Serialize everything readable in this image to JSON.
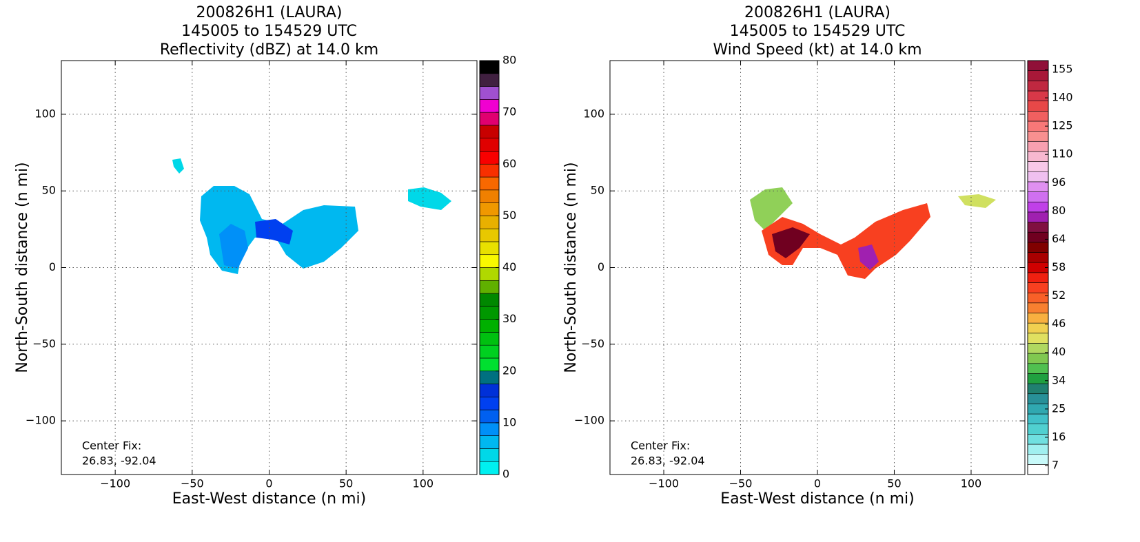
{
  "chart_data": [
    {
      "type": "heatmap",
      "title": [
        "200826H1 (LAURA)",
        "145005 to 154529 UTC",
        "Reflectivity (dBZ) at 14.0 km"
      ],
      "xlabel": "East-West distance (n mi)",
      "ylabel": "North-South distance (n mi)",
      "xlim": [
        -135,
        135
      ],
      "ylim": [
        -135,
        135
      ],
      "xticks": [
        {
          "value": -100,
          "label": "−100"
        },
        {
          "value": -50,
          "label": "−50"
        },
        0,
        50,
        100
      ],
      "yticks": [
        {
          "value": -100,
          "label": "−100"
        },
        {
          "value": -50,
          "label": "−50"
        },
        0,
        50,
        100
      ],
      "grid": true,
      "annotation": [
        "Center Fix:",
        "26.83, -92.04"
      ],
      "colorbar": {
        "lim": [
          0,
          80
        ],
        "ticks": [
          0,
          10,
          20,
          30,
          40,
          50,
          60,
          70,
          80
        ],
        "colors": [
          "#00f0f0",
          "#00d8e8",
          "#00b8f0",
          "#0090f8",
          "#0060f0",
          "#0040f0",
          "#0030d8",
          "#007080",
          "#00e030",
          "#00d020",
          "#00c010",
          "#00b000",
          "#009800",
          "#008800",
          "#60b000",
          "#b0d800",
          "#f8f800",
          "#e8e000",
          "#e8c800",
          "#e8b000",
          "#f09800",
          "#f08000",
          "#f86800",
          "#f83000",
          "#f80000",
          "#e00000",
          "#c80000",
          "#e00070",
          "#f000d0",
          "#a050d0",
          "#402040",
          "#000000"
        ]
      }
    },
    {
      "type": "heatmap",
      "title": [
        "200826H1 (LAURA)",
        "145005 to 154529 UTC",
        "Wind Speed (kt) at 14.0 km"
      ],
      "xlabel": "East-West distance (n mi)",
      "ylabel": "North-South distance (n mi)",
      "xlim": [
        -135,
        135
      ],
      "ylim": [
        -135,
        135
      ],
      "xticks": [
        {
          "value": -100,
          "label": "−100"
        },
        {
          "value": -50,
          "label": "−50"
        },
        0,
        50,
        100
      ],
      "yticks": [
        {
          "value": -100,
          "label": "−100"
        },
        {
          "value": -50,
          "label": "−50"
        },
        0,
        50,
        100
      ],
      "grid": true,
      "annotation": [
        "Center Fix:",
        "26.83, -92.04"
      ],
      "colorbar": {
        "ticks": [
          7,
          16,
          25,
          34,
          40,
          46,
          52,
          58,
          64,
          80,
          96,
          110,
          125,
          140,
          155
        ],
        "colors": [
          "#ffffff",
          "#c8fafa",
          "#a0f0f0",
          "#70e0e0",
          "#50d0d0",
          "#40c0c8",
          "#30a8b0",
          "#289098",
          "#208070",
          "#20a040",
          "#50c050",
          "#80c850",
          "#b0d860",
          "#e0e060",
          "#f0d050",
          "#f8b040",
          "#f88030",
          "#f86028",
          "#f84020",
          "#f02010",
          "#d00000",
          "#a80000",
          "#800000",
          "#700020",
          "#801040",
          "#a020b0",
          "#c040e8",
          "#d070f0",
          "#e090f0",
          "#f0c0f0",
          "#f8c8e8",
          "#f8b8d0",
          "#f8a0b0",
          "#f89090",
          "#f87878",
          "#f06060",
          "#e84848",
          "#d83848",
          "#c02840",
          "#a81838",
          "#901038"
        ]
      }
    }
  ]
}
